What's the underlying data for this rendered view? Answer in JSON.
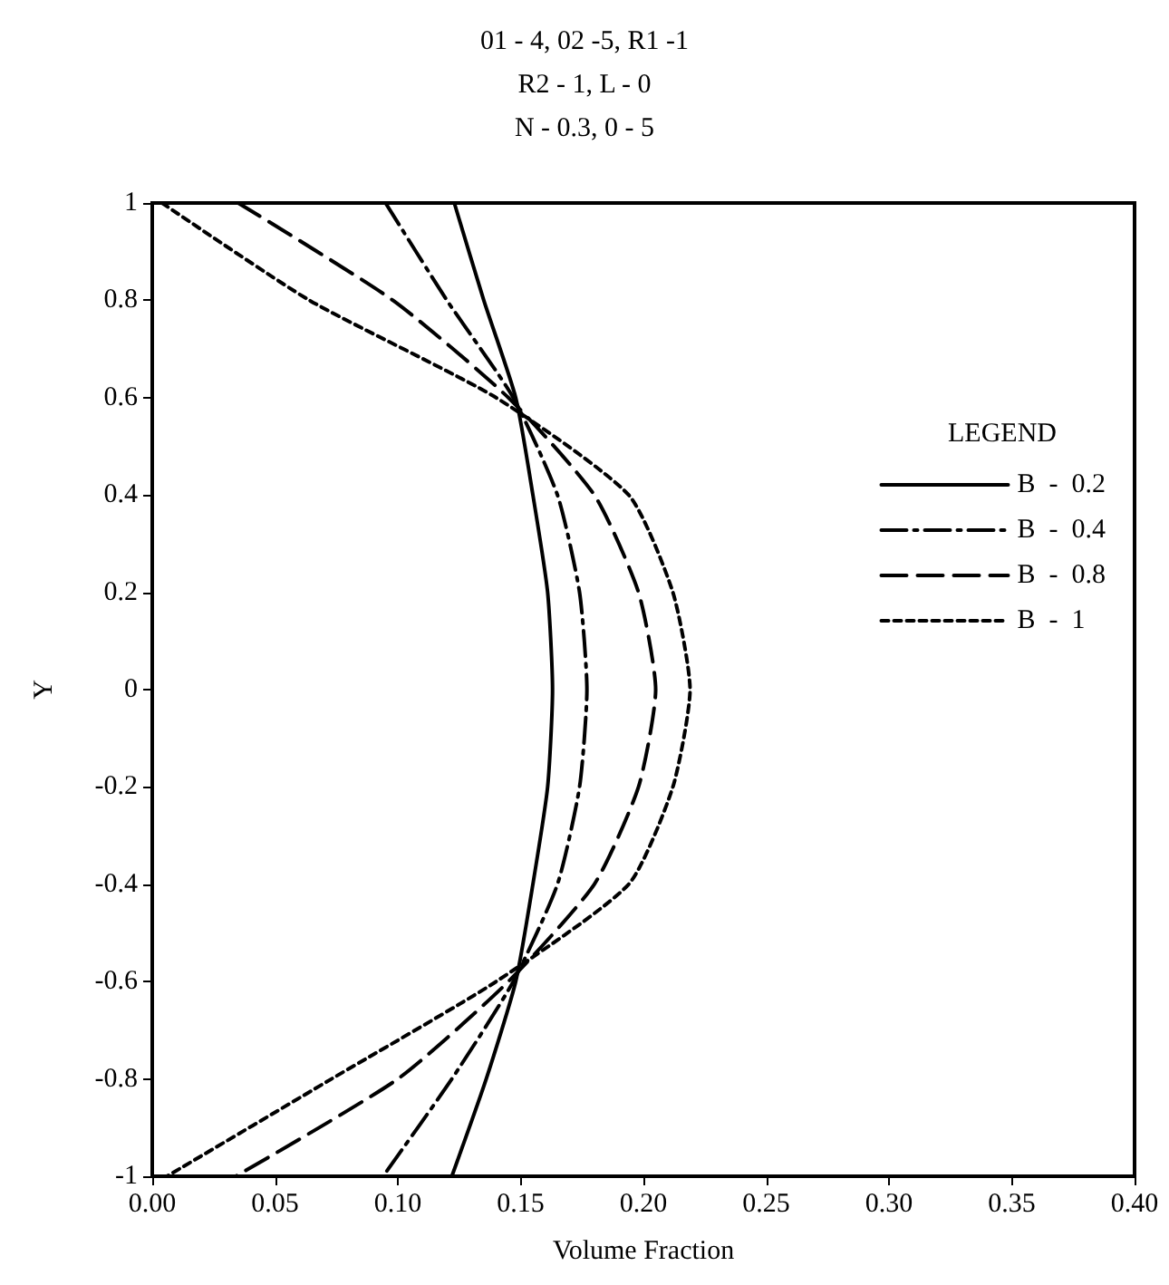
{
  "chart_data": {
    "type": "line",
    "title": "01 - 4, 02 -5, R1 -1\nR2 - 1, L - 0\nN - 0.3, 0 - 5",
    "xlabel": "Volume Fraction",
    "ylabel": "Y",
    "legend_title": "LEGEND",
    "series": [
      {
        "name": "B  -  0.2",
        "color": "#000000",
        "line_style": "solid",
        "x": [
          0.123,
          0.135,
          0.148,
          0.155,
          0.161,
          0.163,
          0.161,
          0.155,
          0.148,
          0.136,
          0.122
        ],
        "values": [
          1,
          0.8,
          0.6,
          0.4,
          0.2,
          0,
          -0.2,
          -0.4,
          -0.6,
          -0.8,
          -1
        ]
      },
      {
        "name": "B  -  0.4",
        "color": "#000000",
        "line_style": "dashdot",
        "x": [
          0.095,
          0.12,
          0.147,
          0.165,
          0.174,
          0.177,
          0.174,
          0.165,
          0.147,
          0.122,
          0.094
        ],
        "values": [
          1,
          0.8,
          0.6,
          0.4,
          0.2,
          0,
          -0.2,
          -0.4,
          -0.6,
          -0.8,
          -1
        ]
      },
      {
        "name": "B  -  0.8",
        "color": "#000000",
        "line_style": "dashed",
        "x": [
          0.035,
          0.098,
          0.145,
          0.18,
          0.198,
          0.205,
          0.198,
          0.18,
          0.145,
          0.1,
          0.034
        ],
        "values": [
          1,
          0.8,
          0.6,
          0.4,
          0.2,
          0,
          -0.2,
          -0.4,
          -0.6,
          -0.8,
          -1
        ]
      },
      {
        "name": "B  -  1",
        "color": "#000000",
        "line_style": "dotted",
        "x": [
          0.004,
          0.064,
          0.14,
          0.194,
          0.212,
          0.219,
          0.212,
          0.194,
          0.14,
          0.073,
          0.006
        ],
        "values": [
          1,
          0.8,
          0.6,
          0.4,
          0.2,
          0,
          -0.2,
          -0.4,
          -0.6,
          -0.8,
          -1
        ]
      }
    ],
    "xlim": [
      0,
      0.4
    ],
    "xticks": [
      {
        "value": 0,
        "label": "0.00"
      },
      {
        "value": 0.05,
        "label": "0.05"
      },
      {
        "value": 0.1,
        "label": "0.10"
      },
      {
        "value": 0.15,
        "label": "0.15"
      },
      {
        "value": 0.2,
        "label": "0.20"
      },
      {
        "value": 0.25,
        "label": "0.25"
      },
      {
        "value": 0.3,
        "label": "0.30"
      },
      {
        "value": 0.35,
        "label": "0.35"
      },
      {
        "value": 0.4,
        "label": "0.40"
      }
    ],
    "ylim": [
      -1,
      1
    ],
    "yticks": [
      -1,
      -0.8,
      -0.6,
      -0.4,
      -0.2,
      0,
      0.2,
      0.4,
      0.6,
      0.8,
      1
    ],
    "grid": false,
    "legend": "right",
    "marker": "none"
  }
}
